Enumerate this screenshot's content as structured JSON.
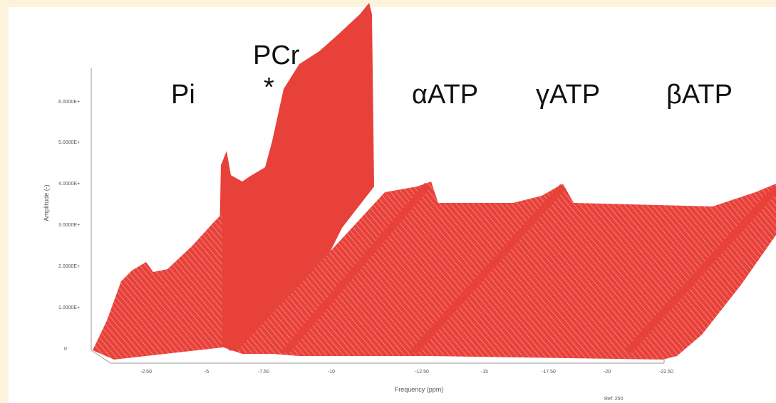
{
  "figure": {
    "peaks": [
      "Pi",
      "PCr",
      "*",
      "αATP",
      "γATP",
      "βATP"
    ],
    "y_axis_label": "Amplitude (-)",
    "x_axis_label": "Frequency (ppm)",
    "y_tick_labels": [
      "0",
      "1.0000E+",
      "2.0000E+",
      "3.0000E+",
      "4.0000E+",
      "5.0000E+",
      "6.0000E+"
    ],
    "x_tick_labels": [
      "-2.50",
      "-5",
      "-7.50",
      "-10",
      "-12.50",
      "-15",
      "-17.50",
      "-20",
      "-22.50"
    ],
    "footnote": "Ref: 250"
  }
}
